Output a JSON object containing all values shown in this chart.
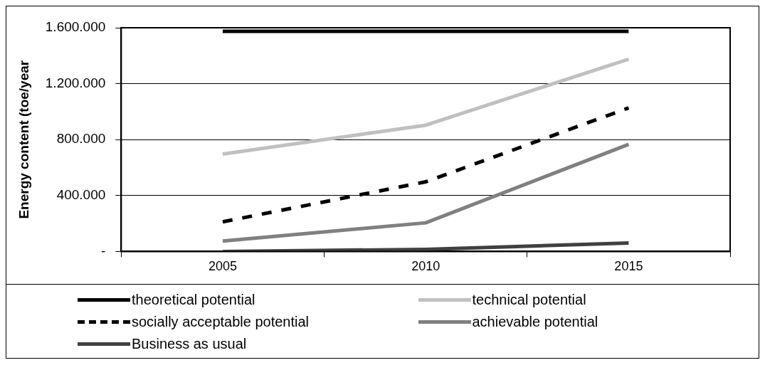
{
  "chart_data": {
    "type": "line",
    "ylabel": "Energy content (toe/year",
    "categories": [
      "2005",
      "2010",
      "2015"
    ],
    "series": [
      {
        "name": "theoretical potential",
        "color": "#000000",
        "values": [
          1575000,
          1575000,
          1575000
        ],
        "line_style": "solid"
      },
      {
        "name": "technical potential",
        "color": "#c0c0c0",
        "values": [
          697000,
          903000,
          1376000
        ],
        "line_style": "solid"
      },
      {
        "name": "socially acceptable potential",
        "color": "#000000",
        "values": [
          212000,
          498000,
          1027000
        ],
        "line_style": "dashed"
      },
      {
        "name": "achievable potential",
        "color": "#808080",
        "values": [
          75000,
          205000,
          766000
        ],
        "line_style": "solid"
      },
      {
        "name": "Business as usual",
        "color": "#404040",
        "values": [
          0,
          15000,
          60000
        ],
        "line_style": "solid"
      }
    ],
    "ylim": [
      0,
      1600000
    ],
    "yticks": [
      {
        "value": 0,
        "label": "-"
      },
      {
        "value": 400000,
        "label": "400.000"
      },
      {
        "value": 800000,
        "label": "800.000"
      },
      {
        "value": 1200000,
        "label": "1.200.000"
      },
      {
        "value": 1600000,
        "label": "1.600.000"
      }
    ],
    "grid": "y",
    "legend": "bottom",
    "marker": "none"
  }
}
